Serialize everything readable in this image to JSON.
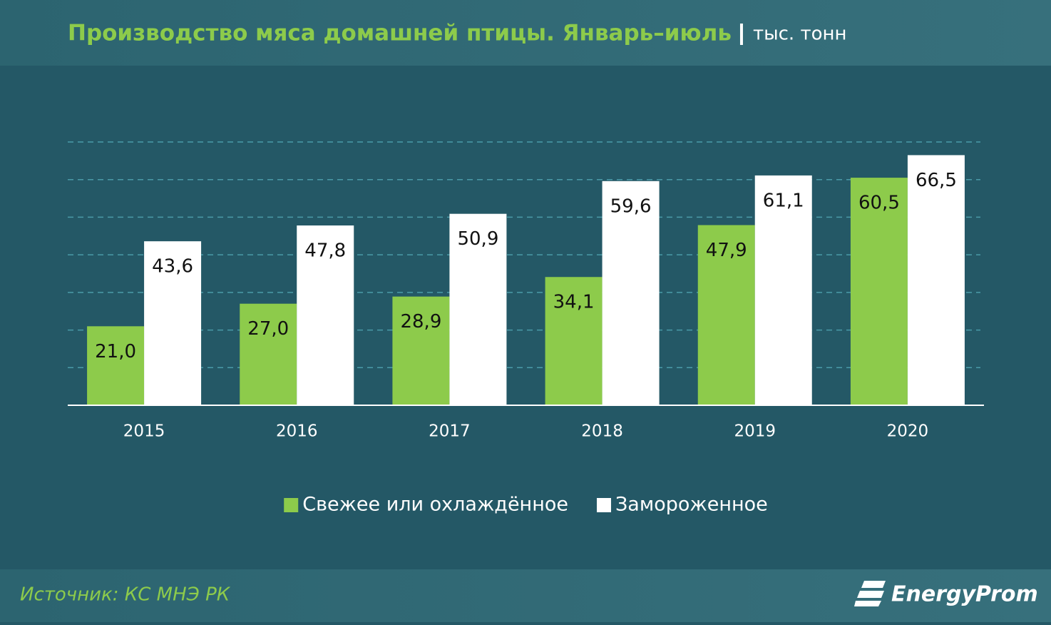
{
  "chart_data": {
    "type": "bar",
    "title": "Производство мяса домашней птицы. Январь–июль",
    "unit": "тыс. тонн",
    "categories": [
      "2015",
      "2016",
      "2017",
      "2018",
      "2019",
      "2020"
    ],
    "series": [
      {
        "name": "Свежее или охлаждённое",
        "color": "#8dcb4b",
        "values": [
          21.0,
          27.0,
          28.9,
          34.1,
          47.9,
          60.5
        ],
        "value_labels": [
          "21,0",
          "27,0",
          "28,9",
          "34,1",
          "47,9",
          "60,5"
        ]
      },
      {
        "name": "Замороженное",
        "color": "#ffffff",
        "values": [
          43.6,
          47.8,
          50.9,
          59.6,
          61.1,
          66.5
        ],
        "value_labels": [
          "43,6",
          "47,8",
          "50,9",
          "59,6",
          "61,1",
          "66,5"
        ]
      }
    ],
    "ylim": [
      0,
      70
    ],
    "yticks": [
      10,
      20,
      30,
      40,
      50,
      60,
      70
    ],
    "grid": true,
    "legend": "bottom"
  },
  "source": "Источник: КС МНЭ РК",
  "logo": "EnergyProm"
}
